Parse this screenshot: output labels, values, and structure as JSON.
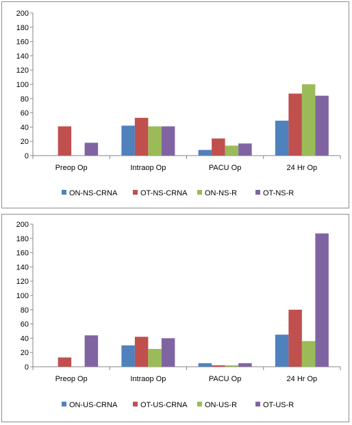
{
  "chart_data": [
    {
      "type": "bar",
      "categories": [
        "Preop Op",
        "Intraop Op",
        "PACU Op",
        "24 Hr Op"
      ],
      "series": [
        {
          "name": "ON-NS-CRNA",
          "color": "#4F81BD",
          "values": [
            0,
            42,
            8,
            49
          ]
        },
        {
          "name": "OT-NS-CRNA",
          "color": "#C0504D",
          "values": [
            41,
            53,
            24,
            87
          ]
        },
        {
          "name": "ON-NS-R",
          "color": "#9BBB59",
          "values": [
            0,
            41,
            14,
            100
          ]
        },
        {
          "name": "OT-NS-R",
          "color": "#8064A2",
          "values": [
            18,
            41,
            17,
            84
          ]
        }
      ],
      "ylim": [
        0,
        200
      ],
      "yticks": [
        0,
        20,
        40,
        60,
        80,
        100,
        120,
        140,
        160,
        180,
        200
      ],
      "grid": false,
      "legend_position": "bottom"
    },
    {
      "type": "bar",
      "categories": [
        "Preop Op",
        "Intraop Op",
        "PACU Op",
        "24 Hr Op"
      ],
      "series": [
        {
          "name": "ON-US-CRNA",
          "color": "#4F81BD",
          "values": [
            0,
            30,
            5,
            45
          ]
        },
        {
          "name": "OT-US-CRNA",
          "color": "#C0504D",
          "values": [
            13,
            42,
            2,
            80
          ]
        },
        {
          "name": "ON-US-R",
          "color": "#9BBB59",
          "values": [
            0,
            25,
            2,
            36
          ]
        },
        {
          "name": "OT-US-R",
          "color": "#8064A2",
          "values": [
            44,
            40,
            5,
            187
          ]
        }
      ],
      "ylim": [
        0,
        200
      ],
      "yticks": [
        0,
        20,
        40,
        60,
        80,
        100,
        120,
        140,
        160,
        180,
        200
      ],
      "grid": false,
      "legend_position": "bottom"
    }
  ]
}
